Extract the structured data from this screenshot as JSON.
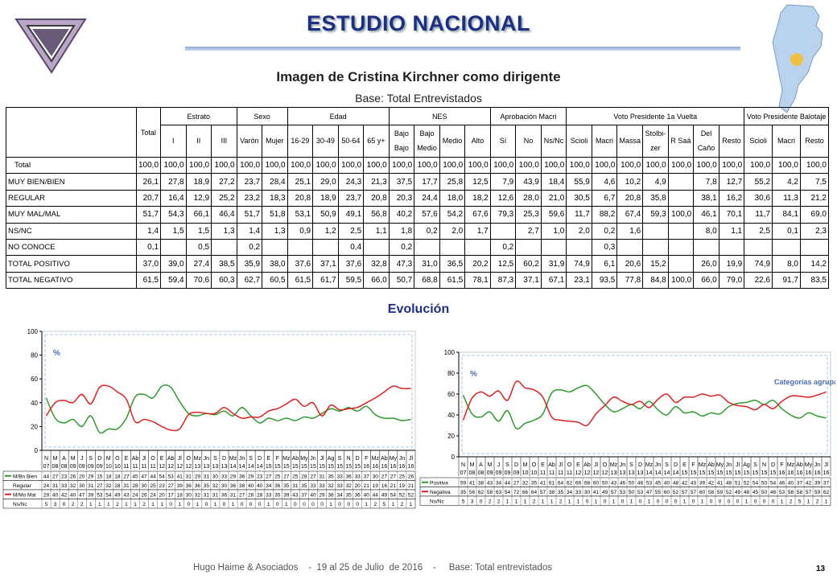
{
  "header": {
    "title": "ESTUDIO NACIONAL",
    "subtitle": "Imagen de Cristina Kirchner como dirigente",
    "base": "Base: Total Entrevistados",
    "evolution_title": "Evolución"
  },
  "table": {
    "groups": [
      {
        "label": "",
        "span": 1
      },
      {
        "label": "Total",
        "span": 1
      },
      {
        "label": "Estrato",
        "span": 3
      },
      {
        "label": "Sexo",
        "span": 2
      },
      {
        "label": "Edad",
        "span": 4
      },
      {
        "label": "NES",
        "span": 4
      },
      {
        "label": "Aprobación Macri",
        "span": 3
      },
      {
        "label": "Voto Presidente 1a Vuelta",
        "span": 7
      },
      {
        "label": "Voto Presidente Balotaje",
        "span": 3
      }
    ],
    "columns": [
      "I",
      "II",
      "III",
      "Varón",
      "Mujer",
      "16-29",
      "30-49",
      "50-64",
      "65 y+",
      "Bajo Bajo",
      "Bajo Medio",
      "Medio",
      "Alto",
      "Sí",
      "No",
      "Ns/Nc",
      "Scioli",
      "Macri",
      "Massa",
      "Stolbi-zer",
      "R Saá",
      "Del Caño",
      "Resto",
      "Scioli",
      "Macri",
      "Resto"
    ],
    "rows": [
      {
        "label": "Total",
        "values": [
          "100,0",
          "100,0",
          "100,0",
          "100,0",
          "100,0",
          "100,0",
          "100,0",
          "100,0",
          "100,0",
          "100,0",
          "100,0",
          "100,0",
          "100,0",
          "100,0",
          "100,0",
          "100,0",
          "100,0",
          "100,0",
          "100,0",
          "100,0",
          "100,0",
          "100,0",
          "100,0",
          "100,0",
          "100,0",
          "100,0",
          "100,0"
        ]
      },
      {
        "label": "MUY BIEN/BIEN",
        "values": [
          "26,1",
          "27,8",
          "18,9",
          "27,2",
          "23,7",
          "28,4",
          "25,1",
          "29,0",
          "24,3",
          "21,3",
          "37,5",
          "17,7",
          "25,8",
          "12,5",
          "7,9",
          "43,9",
          "18,4",
          "55,9",
          "4,6",
          "10,2",
          "4,9",
          "",
          "7,8",
          "12,7",
          "55,2",
          "4,2",
          "7,5"
        ]
      },
      {
        "label": "REGULAR",
        "values": [
          "20,7",
          "16,4",
          "12,9",
          "25,2",
          "23,2",
          "18,3",
          "20,8",
          "18,9",
          "23,7",
          "20,8",
          "20,3",
          "24,4",
          "18,0",
          "18,2",
          "12,6",
          "28,0",
          "21,0",
          "30,5",
          "6,7",
          "20,8",
          "35,8",
          "",
          "38,1",
          "16,2",
          "30,6",
          "11,3",
          "21,2"
        ]
      },
      {
        "label": "MUY MAL/MAL",
        "values": [
          "51,7",
          "54,3",
          "66,1",
          "46,4",
          "51,7",
          "51,8",
          "53,1",
          "50,9",
          "49,1",
          "56,8",
          "40,2",
          "57,6",
          "54,2",
          "67,6",
          "79,3",
          "25,3",
          "59,6",
          "11,7",
          "88,2",
          "67,4",
          "59,3",
          "100,0",
          "46,1",
          "70,1",
          "11,7",
          "84,1",
          "69,0"
        ]
      },
      {
        "label": "NS/NC",
        "values": [
          "1,4",
          "1,5",
          "1,5",
          "1,3",
          "1,4",
          "1,3",
          "0,9",
          "1,2",
          "2,5",
          "1,1",
          "1,8",
          "0,2",
          "2,0",
          "1,7",
          "",
          "2,7",
          "1,0",
          "2,0",
          "0,2",
          "1,6",
          "",
          "",
          "8,0",
          "1,1",
          "2,5",
          "0,1",
          "2,3"
        ]
      },
      {
        "label": "NO CONOCE",
        "values": [
          "0,1",
          "",
          "0,5",
          "",
          "0,2",
          "",
          "",
          "",
          "0,4",
          "",
          "0,2",
          "",
          "",
          "",
          "0,2",
          "",
          "",
          "",
          "0,3",
          "",
          "",
          "",
          "",
          "",
          "",
          "",
          ""
        ]
      },
      {
        "label": "TOTAL POSITIVO",
        "values": [
          "37,0",
          "39,0",
          "27,4",
          "38,5",
          "35,9",
          "38,0",
          "37,6",
          "37,1",
          "37,6",
          "32,8",
          "47,3",
          "31,0",
          "36,5",
          "20,2",
          "12,5",
          "60,2",
          "31,9",
          "74,9",
          "6,1",
          "20,6",
          "15,2",
          "",
          "26,0",
          "19,9",
          "74,9",
          "8,0",
          "14,2"
        ]
      },
      {
        "label": "TOTAL NEGATIVO",
        "values": [
          "61,5",
          "59,4",
          "70,6",
          "60,3",
          "62,7",
          "60,5",
          "61,5",
          "61,7",
          "59,5",
          "66,0",
          "50,7",
          "68,8",
          "61,5",
          "78,1",
          "87,3",
          "37,1",
          "67,1",
          "23,1",
          "93,5",
          "77,8",
          "84,8",
          "100,0",
          "66,0",
          "79,0",
          "22,6",
          "91,7",
          "83,5"
        ]
      }
    ]
  },
  "chart_data": [
    {
      "type": "line",
      "ylabel": "%",
      "ylim": [
        0,
        100
      ],
      "yticks": [
        0,
        20,
        40,
        60,
        80,
        100
      ],
      "x": [
        "N 07",
        "M 08",
        "A 08",
        "M 09",
        "J 09",
        "S 09",
        "D 09",
        "M 10",
        "O 10",
        "E 11",
        "Ab 11",
        "Jl 11",
        "O 11",
        "E 12",
        "Ab 12",
        "Jl 12",
        "O 12",
        "Mz 13",
        "Jn 13",
        "S 13",
        "D 13",
        "Mz 14",
        "Jn 14",
        "S 14",
        "D 14",
        "E 15",
        "F 15",
        "Mz 15",
        "Ab 15",
        "My 15",
        "Jn 15",
        "Jl 15",
        "Ag 15",
        "S 15",
        "N 15",
        "D 15",
        "F 16",
        "Mz 16",
        "Ab 16",
        "My 16",
        "Jn 16",
        "Jl 16"
      ],
      "series": [
        {
          "name": "M/Bn Bien",
          "color": "#2e9a2e",
          "values": [
            44,
            27,
            23,
            26,
            20,
            29,
            15,
            18,
            18,
            27,
            45,
            47,
            44,
            54,
            53,
            41,
            31,
            29,
            31,
            30,
            33,
            29,
            36,
            29,
            23,
            27,
            25,
            27,
            25,
            28,
            27,
            31,
            35,
            33,
            36,
            33,
            37,
            30,
            27,
            27,
            25,
            26
          ]
        },
        {
          "name": "Regular",
          "color": "#555555",
          "values": [
            24,
            31,
            33,
            32,
            30,
            31,
            27,
            32,
            28,
            31,
            28,
            30,
            25,
            23,
            27,
            39,
            36,
            36,
            35,
            32,
            30,
            36,
            38,
            40,
            40,
            34,
            36,
            35,
            31,
            35,
            33,
            33,
            32,
            33,
            32,
            20,
            21,
            19,
            16,
            21,
            19,
            21
          ]
        },
        {
          "name": "M/Mo Mal",
          "color": "#e02020",
          "values": [
            29,
            40,
            42,
            40,
            47,
            39,
            53,
            54,
            49,
            43,
            24,
            26,
            24,
            20,
            17,
            18,
            30,
            32,
            31,
            31,
            36,
            31,
            27,
            28,
            28,
            33,
            35,
            39,
            43,
            37,
            40,
            29,
            38,
            34,
            35,
            36,
            40,
            44,
            49,
            54,
            52,
            52
          ]
        },
        {
          "name": "Ns/Nc",
          "color": "#555555",
          "values": [
            5,
            3,
            0,
            2,
            2,
            1,
            1,
            1,
            2,
            1,
            1,
            2,
            1,
            1,
            0,
            1,
            0,
            1,
            0,
            1,
            0,
            1,
            0,
            0,
            0,
            1,
            0,
            1,
            0,
            0,
            0,
            0,
            1,
            0,
            0,
            0,
            1,
            2,
            5,
            1,
            2,
            1
          ]
        }
      ]
    },
    {
      "type": "line",
      "ylabel": "%",
      "annotation": "Categorías agrupadas",
      "ylim": [
        0,
        100
      ],
      "yticks": [
        0,
        20,
        40,
        60,
        80,
        100
      ],
      "x": [
        "N 07",
        "M 08",
        "A 08",
        "M 09",
        "J 09",
        "S 09",
        "D 09",
        "M 10",
        "O 10",
        "E 11",
        "Ab 11",
        "Jl 11",
        "O 11",
        "E 12",
        "Ab 12",
        "Jl 12",
        "O 12",
        "Mz 13",
        "Jn 13",
        "S 13",
        "D 13",
        "Mz 14",
        "Jn 14",
        "S 14",
        "D 14",
        "E 15",
        "F 15",
        "Mz 15",
        "Ab 15",
        "My 15",
        "Jn 15",
        "Jl 15",
        "Ag 15",
        "S 15",
        "N 15",
        "D 15",
        "F 16",
        "Mz 16",
        "Ab 16",
        "My 16",
        "Jn 16",
        "Jl 16"
      ],
      "series": [
        {
          "name": "Positiva",
          "color": "#2e9a2e",
          "values": [
            59,
            41,
            38,
            43,
            34,
            44,
            27,
            32,
            35,
            41,
            61,
            64,
            62,
            66,
            68,
            60,
            50,
            43,
            46,
            50,
            46,
            53,
            45,
            40,
            48,
            42,
            43,
            39,
            42,
            41,
            48,
            51,
            52,
            54,
            50,
            54,
            46,
            40,
            37,
            42,
            39,
            37
          ]
        },
        {
          "name": "Negativa",
          "color": "#e02020",
          "values": [
            35,
            56,
            62,
            58,
            63,
            54,
            72,
            66,
            64,
            57,
            38,
            35,
            34,
            33,
            30,
            41,
            49,
            57,
            53,
            50,
            53,
            47,
            55,
            60,
            52,
            57,
            57,
            60,
            58,
            59,
            52,
            49,
            48,
            45,
            50,
            46,
            53,
            58,
            58,
            57,
            59,
            62
          ]
        },
        {
          "name": "Ns/Nc",
          "color": "#555555",
          "values": [
            5,
            3,
            0,
            2,
            2,
            1,
            1,
            1,
            2,
            1,
            1,
            2,
            1,
            1,
            0,
            1,
            0,
            1,
            0,
            1,
            0,
            1,
            0,
            0,
            0,
            1,
            0,
            1,
            0,
            0,
            0,
            0,
            1,
            0,
            0,
            0,
            1,
            2,
            5,
            1,
            2,
            1
          ]
        }
      ]
    }
  ],
  "footer": {
    "text": "Hugo Haime & Asociados    -  19 al 25 de Julio  de 2016    -     Base: Total entrevistados",
    "page": "13"
  },
  "colors": {
    "title": "#1d2e86",
    "positive": "#2e9a2e",
    "negative": "#e02020"
  }
}
